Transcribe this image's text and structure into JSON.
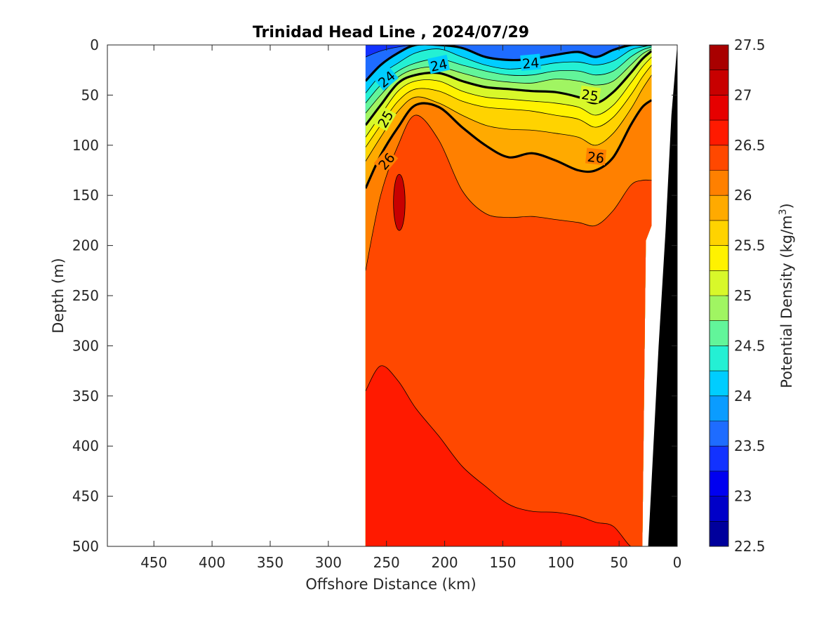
{
  "chart_data": {
    "type": "heatmap",
    "subtype": "filled-contour-section",
    "title": "Trinidad Head Line , 2024/07/29",
    "xlabel": "Offshore Distance (km)",
    "ylabel": "Depth (m)",
    "colorbar_label_text": "Potential Density (kg/m",
    "colorbar_label_sup": "3",
    "colorbar_label_close": ")",
    "x_reversed": true,
    "y_reversed": true,
    "xlim": [
      0,
      490
    ],
    "ylim": [
      0,
      500
    ],
    "x_ticks": [
      "450",
      "400",
      "350",
      "300",
      "250",
      "200",
      "150",
      "100",
      "50",
      "0"
    ],
    "y_ticks": [
      "0",
      "50",
      "100",
      "150",
      "200",
      "250",
      "300",
      "350",
      "400",
      "450",
      "500"
    ],
    "colorbar": {
      "range": [
        22.5,
        27.5
      ],
      "step": 0.25,
      "tick_labels": [
        "22.5",
        "23",
        "23.5",
        "24",
        "24.5",
        "25",
        "25.5",
        "26",
        "26.5",
        "27",
        "27.5"
      ],
      "colors": [
        "#00009c",
        "#0000c8",
        "#0000f0",
        "#1232ff",
        "#1e6cff",
        "#0a9cff",
        "#00cdff",
        "#24f0d4",
        "#62f59a",
        "#a0f562",
        "#d8f82a",
        "#fff200",
        "#ffd300",
        "#ffaa00",
        "#ff8000",
        "#ff4800",
        "#ff1a00",
        "#e60000",
        "#c80000",
        "#a80000"
      ]
    },
    "data_region_km": [
      22,
      268
    ],
    "contour_labels": [
      "24",
      "24",
      "24",
      "25",
      "25",
      "26",
      "26"
    ],
    "fields": {
      "stations_km": [
        268,
        255,
        240,
        225,
        205,
        185,
        165,
        145,
        125,
        105,
        85,
        70,
        55,
        40,
        30,
        22
      ],
      "isopycnals": [
        {
          "level": 23.5,
          "depths": [
            12,
            6,
            2,
            0,
            0,
            0,
            0,
            0,
            0,
            0,
            0,
            0,
            0,
            0,
            0,
            0
          ]
        },
        {
          "level": 24.0,
          "depths": [
            36,
            20,
            8,
            0,
            0,
            3,
            12,
            15,
            14,
            10,
            7,
            12,
            5,
            0,
            0,
            0
          ]
        },
        {
          "level": 24.25,
          "depths": [
            48,
            30,
            18,
            8,
            4,
            12,
            20,
            24,
            22,
            18,
            17,
            20,
            16,
            5,
            2,
            0
          ]
        },
        {
          "level": 24.5,
          "depths": [
            58,
            40,
            26,
            18,
            14,
            20,
            26,
            30,
            30,
            26,
            26,
            30,
            26,
            12,
            5,
            2
          ]
        },
        {
          "level": 24.75,
          "depths": [
            68,
            50,
            32,
            24,
            22,
            28,
            34,
            37,
            38,
            34,
            36,
            40,
            36,
            20,
            9,
            4
          ]
        },
        {
          "level": 25.0,
          "depths": [
            80,
            60,
            38,
            30,
            28,
            36,
            42,
            44,
            46,
            47,
            52,
            58,
            47,
            28,
            14,
            6
          ]
        },
        {
          "level": 25.25,
          "depths": [
            92,
            70,
            46,
            36,
            36,
            46,
            52,
            54,
            56,
            58,
            62,
            70,
            60,
            38,
            22,
            12
          ]
        },
        {
          "level": 25.5,
          "depths": [
            102,
            80,
            56,
            44,
            46,
            56,
            62,
            64,
            66,
            70,
            74,
            82,
            72,
            50,
            32,
            20
          ]
        },
        {
          "level": 25.75,
          "depths": [
            116,
            92,
            66,
            52,
            58,
            70,
            80,
            84,
            85,
            88,
            92,
            100,
            88,
            64,
            44,
            30
          ]
        },
        {
          "level": 26.0,
          "depths": [
            143,
            110,
            82,
            60,
            62,
            82,
            100,
            112,
            108,
            115,
            125,
            125,
            112,
            80,
            62,
            55
          ]
        },
        {
          "level": 26.25,
          "depths": [
            225,
            150,
            100,
            70,
            95,
            145,
            168,
            172,
            171,
            174,
            177,
            180,
            165,
            140,
            135,
            135
          ]
        },
        {
          "level": 26.5,
          "depths": [
            345,
            320,
            335,
            362,
            390,
            420,
            440,
            458,
            465,
            466,
            470,
            476,
            480,
            500,
            500,
            500
          ]
        }
      ],
      "core_27": {
        "center_km": 239,
        "center_depth": 157,
        "half_width_km": 5,
        "half_height": 28
      }
    }
  }
}
